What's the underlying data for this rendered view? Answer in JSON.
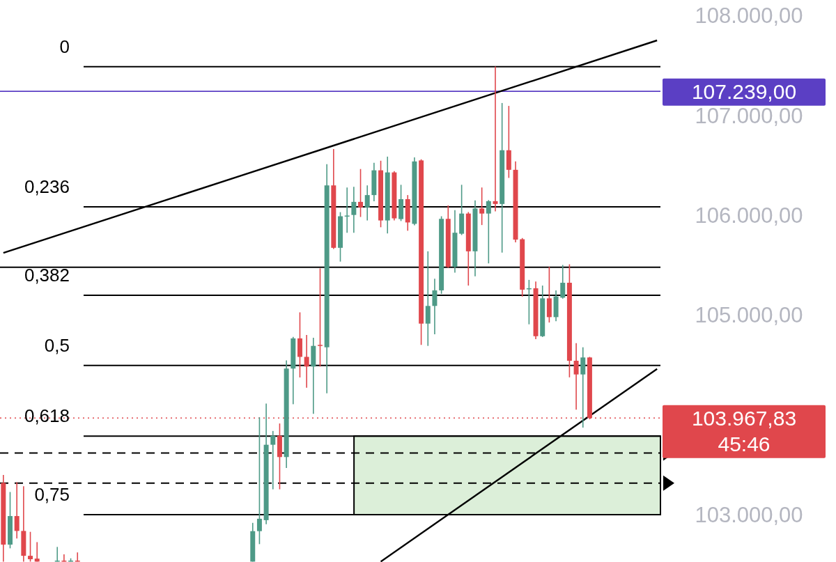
{
  "chart_data": {
    "type": "candlestick",
    "categories": [
      null,
      null,
      null,
      null,
      null,
      null,
      null,
      null,
      null,
      null,
      null,
      null,
      null,
      null,
      null,
      null,
      null,
      null,
      null,
      null,
      null,
      null,
      null,
      null,
      null,
      null,
      null,
      null,
      null,
      null,
      null,
      null,
      null,
      null,
      null,
      null,
      null,
      null,
      null,
      null,
      null,
      null,
      null,
      null,
      null,
      null,
      null,
      null,
      null,
      null,
      null,
      null,
      null,
      null,
      null,
      null,
      null,
      null,
      null,
      null,
      null,
      null,
      null,
      null,
      null,
      null,
      null,
      null,
      null,
      null,
      null,
      null,
      null,
      null,
      null,
      null,
      null,
      null,
      null,
      null,
      null,
      null,
      null,
      null,
      null,
      null,
      null,
      null,
      null,
      null,
      null,
      null,
      null,
      null,
      null,
      null,
      null,
      null
    ],
    "ohlc": [
      [
        103318,
        103398,
        102530,
        102700
      ],
      [
        102700,
        103227,
        102663,
        102986
      ],
      [
        102986,
        103325,
        102762,
        102837
      ],
      [
        102837,
        103284,
        102530,
        102588
      ],
      [
        102588,
        102828,
        102530,
        102554
      ],
      [
        102560,
        102725,
        102530,
        102530
      ],
      null,
      null,
      [
        102530,
        102677,
        102530,
        102540
      ],
      [
        102540,
        102602,
        102530,
        102530
      ],
      [
        102530,
        102563,
        102530,
        102540
      ],
      [
        102540,
        102622,
        102530,
        102530
      ],
      null,
      null,
      null,
      null,
      null,
      null,
      null,
      null,
      null,
      null,
      null,
      null,
      null,
      null,
      null,
      null,
      null,
      null,
      null,
      null,
      null,
      null,
      null,
      null,
      null,
      [
        102530,
        102918,
        102530,
        102835
      ],
      [
        102835,
        103975,
        102705,
        102959
      ],
      [
        102945,
        104113,
        102904,
        103700
      ],
      [
        103700,
        103838,
        103254,
        103790
      ],
      [
        103790,
        103913,
        103254,
        103577
      ],
      [
        103577,
        104545,
        103467,
        104463
      ],
      [
        104463,
        104780,
        104106,
        104765
      ],
      [
        104765,
        105026,
        104374,
        104580
      ],
      [
        104580,
        104799,
        104271,
        104483
      ],
      [
        104483,
        104772,
        104010,
        104690
      ],
      [
        104700,
        105466,
        104483,
        104690
      ],
      [
        104676,
        106510,
        104216,
        106297
      ],
      [
        106297,
        106661,
        105660,
        105672
      ],
      [
        105672,
        106029,
        105534,
        105988
      ],
      [
        105985,
        106276,
        105823,
        105995
      ],
      [
        106001,
        106283,
        105823,
        106132
      ],
      [
        106132,
        106461,
        105981,
        106077
      ],
      [
        106077,
        106297,
        105946,
        106200
      ],
      [
        106200,
        106523,
        106139,
        106448
      ],
      [
        106448,
        106544,
        105878,
        105946
      ],
      [
        105946,
        106585,
        105816,
        106427
      ],
      [
        106427,
        106440,
        105946,
        105967
      ],
      [
        105960,
        106303,
        105940,
        106159
      ],
      [
        106159,
        106200,
        105843,
        105926
      ],
      [
        105912,
        106578,
        105898,
        106537
      ],
      [
        106547,
        106558,
        104700,
        104913
      ],
      [
        104913,
        105637,
        104690,
        105090
      ],
      [
        105090,
        105363,
        104806,
        105246
      ],
      [
        105246,
        105988,
        105211,
        105962
      ],
      [
        105962,
        106097,
        105470,
        105481
      ],
      [
        105481,
        106049,
        105424,
        105823
      ],
      [
        105813,
        106303,
        105800,
        106015
      ],
      [
        106015,
        106030,
        105294,
        105637
      ],
      [
        105637,
        106146,
        105387,
        106066
      ],
      [
        106066,
        106276,
        105900,
        106015
      ],
      [
        106015,
        106150,
        105516,
        106139
      ],
      [
        106139,
        107487,
        106037,
        106111
      ],
      [
        106111,
        107122,
        105624,
        106649
      ],
      [
        106649,
        107093,
        106372,
        106453
      ],
      [
        106453,
        106537,
        105727,
        105754
      ],
      [
        105758,
        105770,
        105184,
        105253
      ],
      [
        105260,
        105351,
        104906,
        105267
      ],
      [
        105267,
        105335,
        104758,
        104787
      ],
      [
        104787,
        105294,
        104779,
        105166
      ],
      [
        105166,
        105481,
        104924,
        104978
      ],
      [
        104978,
        105246,
        104937,
        105185
      ],
      [
        105173,
        105500,
        105163,
        105322
      ],
      [
        105322,
        105507,
        104375,
        104541
      ],
      [
        104541,
        104717,
        104051,
        104404
      ],
      [
        104404,
        104676,
        103872,
        104574
      ],
      [
        104574,
        104580,
        103955,
        103967.83
      ],
      null,
      null,
      null,
      null,
      null,
      null,
      null,
      null,
      null,
      null
    ],
    "series": [
      {
        "type": "line",
        "color": "#000000",
        "values": [
          105621,
          null,
          null,
          null,
          null,
          null,
          null,
          null,
          null,
          null,
          null,
          null,
          null,
          null,
          null,
          null,
          null,
          null,
          null,
          null,
          null,
          null,
          null,
          null,
          null,
          null,
          null,
          null,
          null,
          null,
          null,
          null,
          null,
          null,
          null,
          null,
          null,
          null,
          null,
          null,
          null,
          null,
          null,
          null,
          null,
          null,
          null,
          null,
          null,
          null,
          null,
          null,
          null,
          null,
          null,
          null,
          null,
          null,
          null,
          null,
          null,
          null,
          null,
          null,
          null,
          null,
          null,
          null,
          null,
          null,
          null,
          null,
          null,
          null,
          null,
          null,
          null,
          null,
          null,
          null,
          null,
          null,
          null,
          null,
          null,
          null,
          null,
          null,
          null,
          null,
          null,
          null,
          null,
          null,
          null,
          null,
          null,
          107749
        ]
      },
      {
        "type": "line",
        "color": "#000000",
        "values": [
          null,
          null,
          null,
          null,
          null,
          null,
          null,
          null,
          null,
          null,
          null,
          null,
          null,
          null,
          null,
          null,
          null,
          null,
          null,
          null,
          null,
          null,
          null,
          null,
          null,
          null,
          null,
          null,
          null,
          null,
          null,
          null,
          null,
          null,
          null,
          null,
          null,
          null,
          null,
          null,
          null,
          null,
          null,
          null,
          null,
          null,
          null,
          null,
          null,
          null,
          null,
          null,
          null,
          null,
          null,
          null,
          102530,
          null,
          null,
          null,
          null,
          null,
          null,
          null,
          null,
          null,
          null,
          null,
          null,
          null,
          null,
          null,
          null,
          null,
          null,
          null,
          null,
          null,
          null,
          null,
          null,
          null,
          null,
          null,
          null,
          null,
          null,
          null,
          null,
          null,
          null,
          null,
          null,
          null,
          null,
          null,
          null,
          104460
        ]
      }
    ],
    "ylim": [
      102526,
      108000
    ],
    "annotations": [
      "0",
      "0,236",
      "0,382",
      "0,5",
      "0,618",
      "0,75"
    ],
    "yticks": [
      {
        "value": 103000,
        "label": "103.000,00"
      },
      {
        "value": 105000,
        "label": "105.000,00"
      },
      {
        "value": 106000,
        "label": "106.000,00"
      },
      {
        "value": 107000,
        "label": "107.000,00"
      },
      {
        "value": 108000,
        "label": "108.000,00"
      }
    ],
    "tick_labels": "y",
    "ref_lines": [
      {
        "axis": "y",
        "value": 107485,
        "color": "#000000",
        "line_style": "solid"
      },
      {
        "axis": "y",
        "value": 106083,
        "color": "#000000",
        "line_style": "solid"
      },
      {
        "axis": "y",
        "value": 105196,
        "color": "#000000",
        "line_style": "solid"
      },
      {
        "axis": "y",
        "value": 104495,
        "color": "#000000",
        "line_style": "solid"
      },
      {
        "axis": "y",
        "value": 103787,
        "color": "#000000",
        "line_style": "solid"
      },
      {
        "axis": "y",
        "value": 103000,
        "color": "#000000",
        "line_style": "solid"
      },
      {
        "axis": "y",
        "value": 105478,
        "color": "#000000",
        "line_style": "solid"
      },
      {
        "axis": "y",
        "value": 103618,
        "label": null,
        "color": "#000000",
        "line_style": "dashed"
      },
      {
        "axis": "y",
        "value": 103316,
        "label": null,
        "color": "#000000",
        "line_style": "dashed"
      },
      {
        "axis": "y",
        "value": 107239,
        "label": "107.239,00",
        "color": "#5b3fc4",
        "line_style": "solid"
      },
      {
        "axis": "y",
        "value": 103967.83,
        "label": "103.967,83\n45:46",
        "color": "#e0474c",
        "line_style": "dotted"
      }
    ],
    "bands": [
      {
        "axis": "y",
        "from": 103000,
        "to": 103787,
        "color": "#dcefd9"
      }
    ]
  }
}
